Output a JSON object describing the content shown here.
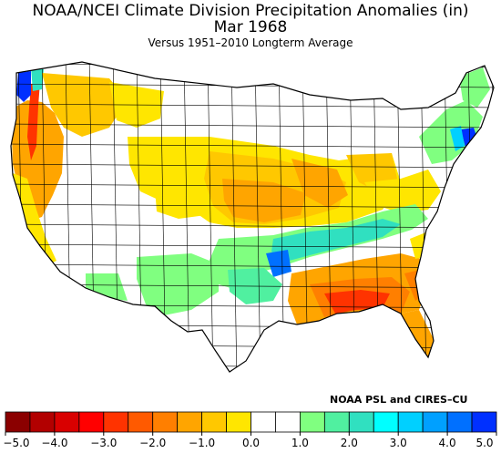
{
  "title": "NOAA/NCEI Climate Division Precipitation Anomalies (in)",
  "subtitle": "Mar 1968",
  "caption": "Versus 1951–2010 Longterm Average",
  "credit": "NOAA PSL and CIRES–CU",
  "legend": {
    "unit": "in",
    "colors": [
      "#8b0000",
      "#b20000",
      "#d90000",
      "#ff0000",
      "#ff3300",
      "#ff5a00",
      "#ff7f00",
      "#ffa500",
      "#ffc800",
      "#ffe600",
      "#ffffff",
      "#ffffff",
      "#80ff80",
      "#50f0a0",
      "#30e0c0",
      "#00ffff",
      "#00d0ff",
      "#00a0ff",
      "#0070ff",
      "#0030ff"
    ],
    "labels": [
      "−5.0",
      "−4.0",
      "−3.0",
      "−2.0",
      "−1.0",
      "0.0",
      "1.0",
      "2.0",
      "3.0",
      "4.0",
      "5.0"
    ]
  },
  "palette": {
    "dry_heavy": "#ff3300",
    "dry_strong": "#ff7f00",
    "dry_moderate": "#ffa500",
    "dry_light": "#ffc800",
    "dry_slight": "#ffe600",
    "neutral": "#ffffff",
    "wet_slight": "#80ff80",
    "wet_light": "#50f0a0",
    "wet_moderate": "#30e0c0",
    "wet_strong": "#00d0ff",
    "wet_heavy": "#0070ff",
    "wet_extreme": "#0030ff",
    "outline": "#000000"
  }
}
